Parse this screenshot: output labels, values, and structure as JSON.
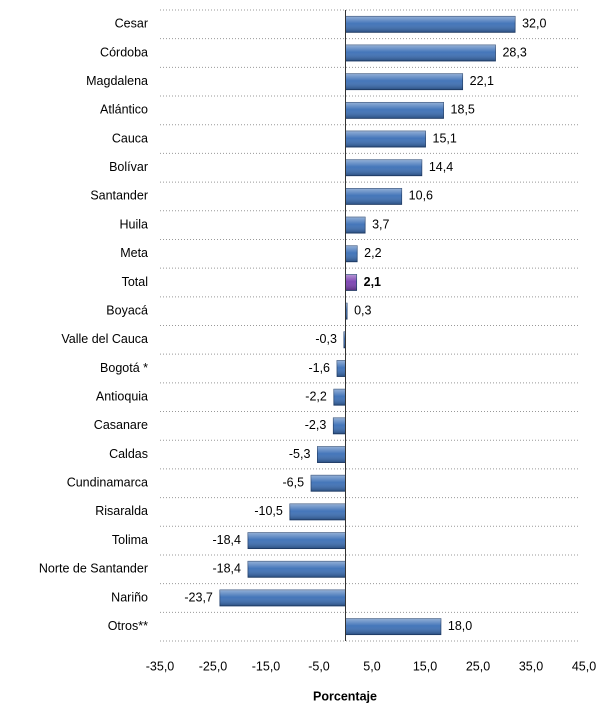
{
  "chart_data": {
    "type": "bar",
    "orientation": "horizontal",
    "categories": [
      "Cesar",
      "Córdoba",
      "Magdalena",
      "Atlántico",
      "Cauca",
      "Bolívar",
      "Santander",
      "Huila",
      "Meta",
      "Total",
      "Boyacá",
      "Valle del Cauca",
      "Bogotá *",
      "Antioquia",
      "Casanare",
      "Caldas",
      "Cundinamarca",
      "Risaralda",
      "Tolima",
      "Norte de Santander",
      "Nariño",
      "Otros**"
    ],
    "values": [
      32.0,
      28.3,
      22.1,
      18.5,
      15.1,
      14.4,
      10.6,
      3.7,
      2.2,
      2.1,
      0.3,
      -0.3,
      -1.6,
      -2.2,
      -2.3,
      -5.3,
      -6.5,
      -10.5,
      -18.4,
      -18.4,
      -23.7,
      18.0
    ],
    "value_labels": [
      "32,0",
      "28,3",
      "22,1",
      "18,5",
      "15,1",
      "14,4",
      "10,6",
      "3,7",
      "2,2",
      "2,1",
      "0,3",
      "-0,3",
      "-1,6",
      "-2,2",
      "-2,3",
      "-5,3",
      "-6,5",
      "-10,5",
      "-18,4",
      "-18,4",
      "-23,7",
      "18,0"
    ],
    "color": "#3b6fb6",
    "colors": [
      "#3b6fb6",
      "#3b6fb6",
      "#3b6fb6",
      "#3b6fb6",
      "#3b6fb6",
      "#3b6fb6",
      "#3b6fb6",
      "#3b6fb6",
      "#3b6fb6",
      "#7a3fb0",
      "#3b6fb6",
      "#3b6fb6",
      "#3b6fb6",
      "#3b6fb6",
      "#3b6fb6",
      "#3b6fb6",
      "#3b6fb6",
      "#3b6fb6",
      "#3b6fb6",
      "#3b6fb6",
      "#3b6fb6",
      "#3b6fb6"
    ],
    "xlabel": "Porcentaje",
    "xlim": [
      -35,
      45
    ],
    "xticks": [
      {
        "value": -35,
        "label": "-35,0"
      },
      {
        "value": -25,
        "label": "-25,0"
      },
      {
        "value": -15,
        "label": "-15,0"
      },
      {
        "value": -5,
        "label": "-5,0"
      },
      {
        "value": 5,
        "label": "5,0"
      },
      {
        "value": 15,
        "label": "15,0"
      },
      {
        "value": 25,
        "label": "25,0"
      },
      {
        "value": 35,
        "label": "35,0"
      },
      {
        "value": 45,
        "label": "45,0"
      }
    ],
    "grid": true
  }
}
